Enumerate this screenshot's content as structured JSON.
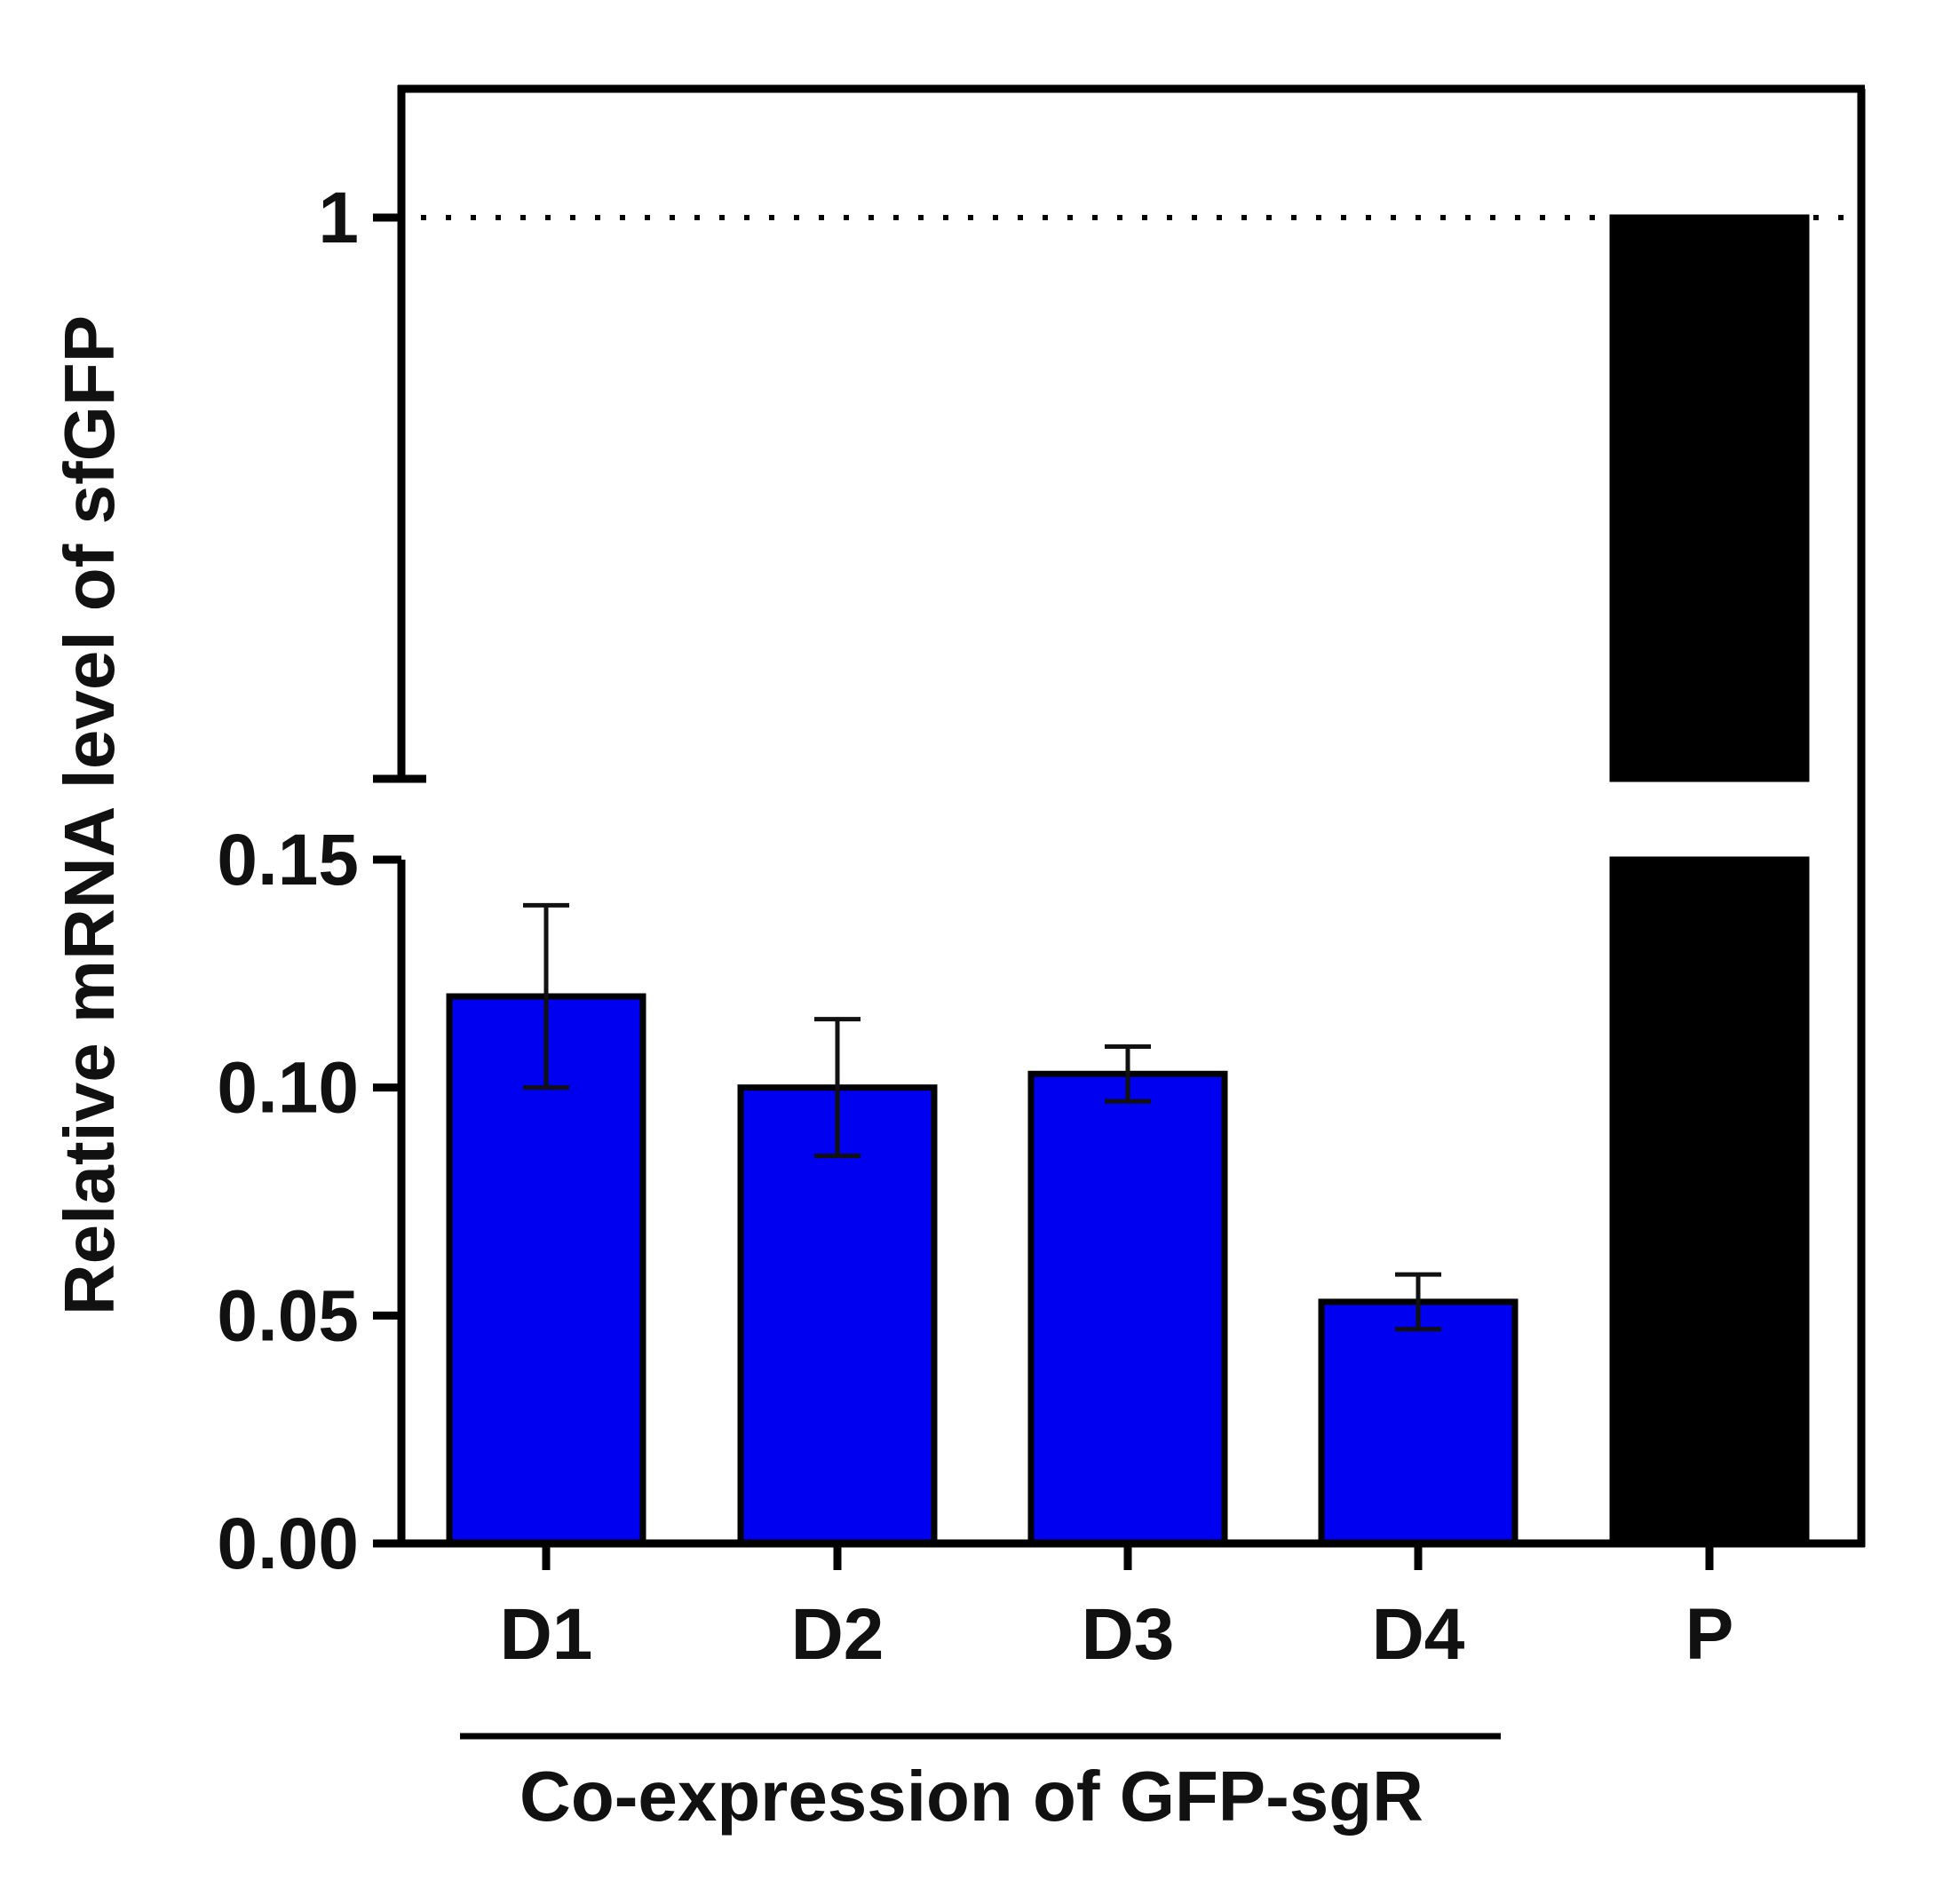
{
  "chart_data": {
    "type": "bar",
    "ylabel": "Relative mRNA level of sfGFP",
    "xlabel": "Co-expression of GFP-sgR",
    "categories": [
      "D1",
      "D2",
      "D3",
      "D4",
      "P"
    ],
    "values": [
      0.12,
      0.1,
      0.103,
      0.053,
      1
    ],
    "errors": [
      0.02,
      0.015,
      0.006,
      0.006,
      0
    ],
    "bar_colors": [
      "#0000f0",
      "#0000f0",
      "#0000f0",
      "#0000f0",
      "#000000"
    ],
    "group_bracket": {
      "label": "Co-expression of GFP-sgR",
      "categories": [
        "D1",
        "D2",
        "D3",
        "D4"
      ]
    },
    "y_axis": {
      "broken": true,
      "lower_segment": {
        "range": [
          0,
          0.15
        ],
        "ticks": [
          "0.00",
          "0.05",
          "0.10",
          "0.15"
        ]
      },
      "upper_segment": {
        "ticks": [
          "1"
        ]
      }
    },
    "reference_line": {
      "value": 1,
      "style": "dotted"
    },
    "grid": false,
    "legend": "none"
  }
}
